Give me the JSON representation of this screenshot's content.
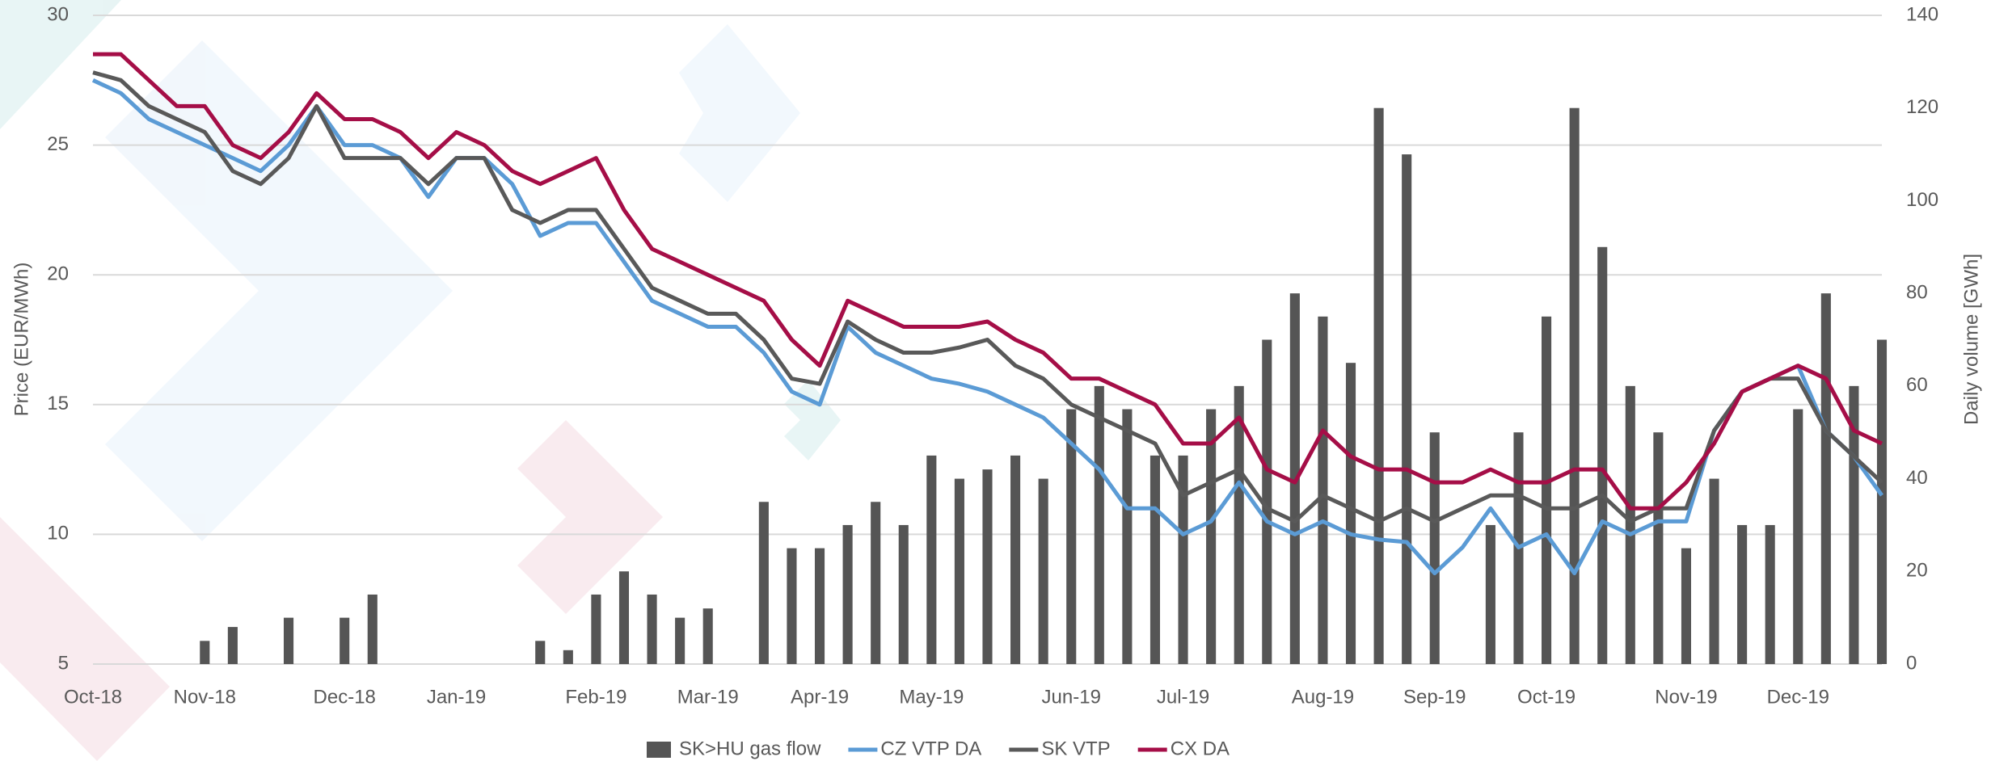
{
  "chart_data": {
    "type": "combo",
    "y_label": "Price (EUR/MWh)",
    "y2_label": "Daily volume [GWh]",
    "categories": [
      "Oct-18",
      null,
      null,
      null,
      "Nov-18",
      null,
      null,
      null,
      null,
      "Dec-18",
      null,
      null,
      null,
      "Jan-19",
      null,
      null,
      null,
      null,
      "Feb-19",
      null,
      null,
      null,
      "Mar-19",
      null,
      null,
      null,
      "Apr-19",
      null,
      null,
      null,
      "May-19",
      null,
      null,
      null,
      null,
      "Jun-19",
      null,
      null,
      null,
      "Jul-19",
      null,
      null,
      null,
      null,
      "Aug-19",
      null,
      null,
      null,
      "Sep-19",
      null,
      null,
      null,
      "Oct-19",
      null,
      null,
      null,
      null,
      "Nov-19",
      null,
      null,
      null,
      "Dec-19",
      null,
      null,
      null
    ],
    "ylim": [
      5,
      30
    ],
    "yticks": [
      5,
      10,
      15,
      20,
      25,
      30
    ],
    "y2lim": [
      0,
      140
    ],
    "y2ticks": [
      0,
      20,
      40,
      60,
      80,
      100,
      120,
      140
    ],
    "grid": true,
    "legend": "bottom",
    "series": [
      {
        "name": "SK>HU gas flow",
        "type": "bar",
        "axis": "y2",
        "color": "#555555",
        "values": [
          0,
          0,
          0,
          0,
          5,
          8,
          0,
          10,
          0,
          10,
          15,
          0,
          0,
          0,
          0,
          0,
          5,
          3,
          15,
          20,
          15,
          10,
          12,
          0,
          35,
          25,
          25,
          30,
          35,
          30,
          45,
          40,
          42,
          45,
          40,
          55,
          60,
          55,
          45,
          45,
          55,
          60,
          70,
          80,
          75,
          65,
          120,
          110,
          50,
          0,
          30,
          50,
          75,
          120,
          90,
          60,
          50,
          25,
          40,
          30,
          30,
          55,
          80,
          60,
          70
        ]
      },
      {
        "name": "CZ VTP DA",
        "type": "line",
        "color": "#5b9bd5",
        "values": [
          27.5,
          27,
          26,
          25.5,
          25,
          24.5,
          24,
          25,
          26.5,
          25,
          25,
          24.5,
          23,
          24.5,
          24.5,
          23.5,
          21.5,
          22,
          22,
          20.5,
          19,
          18.5,
          18,
          18,
          17,
          15.5,
          15,
          18,
          17,
          16.5,
          16,
          15.8,
          15.5,
          15,
          14.5,
          13.5,
          12.5,
          11,
          11,
          10,
          10.5,
          12,
          10.5,
          10,
          10.5,
          10,
          9.8,
          9.7,
          8.5,
          9.5,
          11,
          9.5,
          10,
          8.5,
          10.5,
          10,
          10.5,
          10.5,
          14,
          15.5,
          16,
          16.5,
          14,
          13,
          11.5
        ]
      },
      {
        "name": "SK VTP",
        "type": "line",
        "color": "#595959",
        "values": [
          27.8,
          27.5,
          26.5,
          26,
          25.5,
          24,
          23.5,
          24.5,
          26.5,
          24.5,
          24.5,
          24.5,
          23.5,
          24.5,
          24.5,
          22.5,
          22,
          22.5,
          22.5,
          21,
          19.5,
          19,
          18.5,
          18.5,
          17.5,
          16,
          15.8,
          18.2,
          17.5,
          17,
          17,
          17.2,
          17.5,
          16.5,
          16,
          15,
          14.5,
          14,
          13.5,
          11.5,
          12,
          12.5,
          11,
          10.5,
          11.5,
          11,
          10.5,
          11,
          10.5,
          11,
          11.5,
          11.5,
          11,
          11,
          11.5,
          10.5,
          11,
          11,
          14,
          15.5,
          16,
          16,
          14,
          13,
          12
        ]
      },
      {
        "name": "CX DA",
        "type": "line",
        "color": "#a50e47",
        "values": [
          28.5,
          28.5,
          27.5,
          26.5,
          26.5,
          25,
          24.5,
          25.5,
          27,
          26,
          26,
          25.5,
          24.5,
          25.5,
          25,
          24,
          23.5,
          24,
          24.5,
          22.5,
          21,
          20.5,
          20,
          19.5,
          19,
          17.5,
          16.5,
          19,
          18.5,
          18,
          18,
          18,
          18.2,
          17.5,
          17,
          16,
          16,
          15.5,
          15,
          13.5,
          13.5,
          14.5,
          12.5,
          12,
          14,
          13,
          12.5,
          12.5,
          12,
          12,
          12.5,
          12,
          12,
          12.5,
          12.5,
          11,
          11,
          12,
          13.5,
          15.5,
          16,
          16.5,
          16,
          14,
          13.5
        ]
      }
    ]
  }
}
